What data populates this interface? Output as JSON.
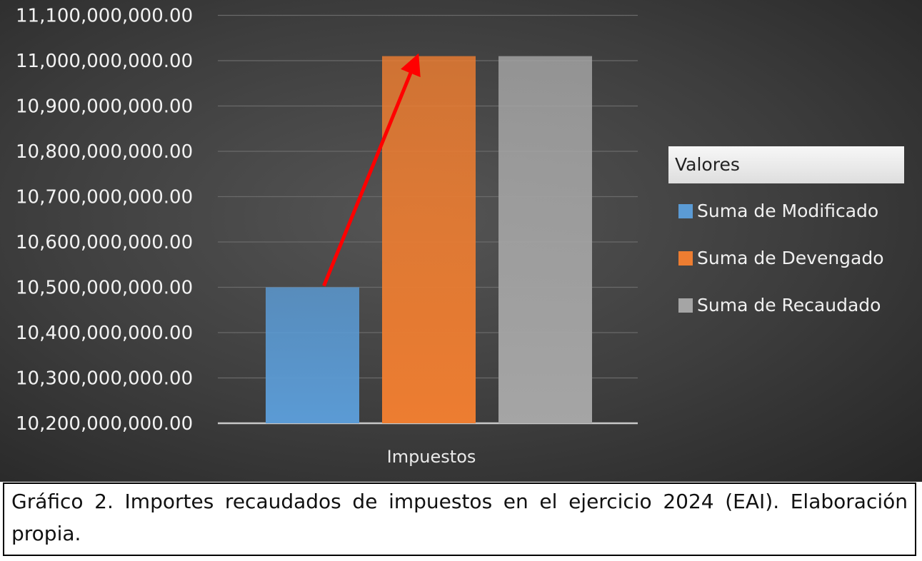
{
  "chart_data": {
    "type": "bar",
    "categories": [
      "Impuestos"
    ],
    "series": [
      {
        "name": "Suma de Modificado",
        "values": [
          10500000000
        ],
        "color": "#5b9bd5"
      },
      {
        "name": "Suma de Devengado",
        "values": [
          11010000000
        ],
        "color": "#ed7d31"
      },
      {
        "name": "Suma de Recaudado",
        "values": [
          11010000000
        ],
        "color": "#a5a5a5"
      }
    ],
    "ylim": [
      10200000000,
      11100000000
    ],
    "yticks": [
      "10,200,000,000.00",
      "10,300,000,000.00",
      "10,400,000,000.00",
      "10,500,000,000.00",
      "10,600,000,000.00",
      "10,700,000,000.00",
      "10,800,000,000.00",
      "10,900,000,000.00",
      "11,000,000,000.00",
      "11,100,000,000.00"
    ],
    "legend_title": "Valores",
    "legend_position": "right",
    "grid": true,
    "annotation": {
      "type": "arrow",
      "from_series": "Suma de Modificado",
      "to_series": "Suma de Devengado",
      "color": "#ff0000"
    }
  },
  "caption": {
    "text": "Gráfico 2. Importes recaudados de impuestos en el ejercicio 2024 (EAI). Elaboración propia."
  }
}
